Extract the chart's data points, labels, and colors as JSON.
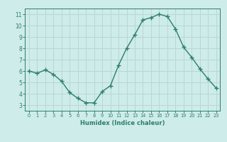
{
  "x": [
    0,
    1,
    2,
    3,
    4,
    5,
    6,
    7,
    8,
    9,
    10,
    11,
    12,
    13,
    14,
    15,
    16,
    17,
    18,
    19,
    20,
    21,
    22,
    23
  ],
  "y": [
    6.0,
    5.8,
    6.1,
    5.7,
    5.1,
    4.1,
    3.6,
    3.2,
    3.2,
    4.2,
    4.7,
    6.5,
    8.0,
    9.2,
    10.5,
    10.7,
    11.0,
    10.8,
    9.7,
    8.1,
    7.2,
    6.2,
    5.3,
    4.5
  ],
  "xlabel": "Humidex (Indice chaleur)",
  "xlim": [
    -0.5,
    23.5
  ],
  "ylim": [
    2.5,
    11.5
  ],
  "yticks": [
    3,
    4,
    5,
    6,
    7,
    8,
    9,
    10,
    11
  ],
  "xticks": [
    0,
    1,
    2,
    3,
    4,
    5,
    6,
    7,
    8,
    9,
    10,
    11,
    12,
    13,
    14,
    15,
    16,
    17,
    18,
    19,
    20,
    21,
    22,
    23
  ],
  "line_color": "#2e7d6e",
  "marker": "+",
  "bg_color": "#ceecea",
  "grid_color": "#b8d8d4",
  "axis_color": "#2e7d6e",
  "tick_label_color": "#2e7d6e",
  "xlabel_color": "#2e7d6e",
  "linewidth": 1.0,
  "markersize": 4,
  "markeredgewidth": 1.0
}
